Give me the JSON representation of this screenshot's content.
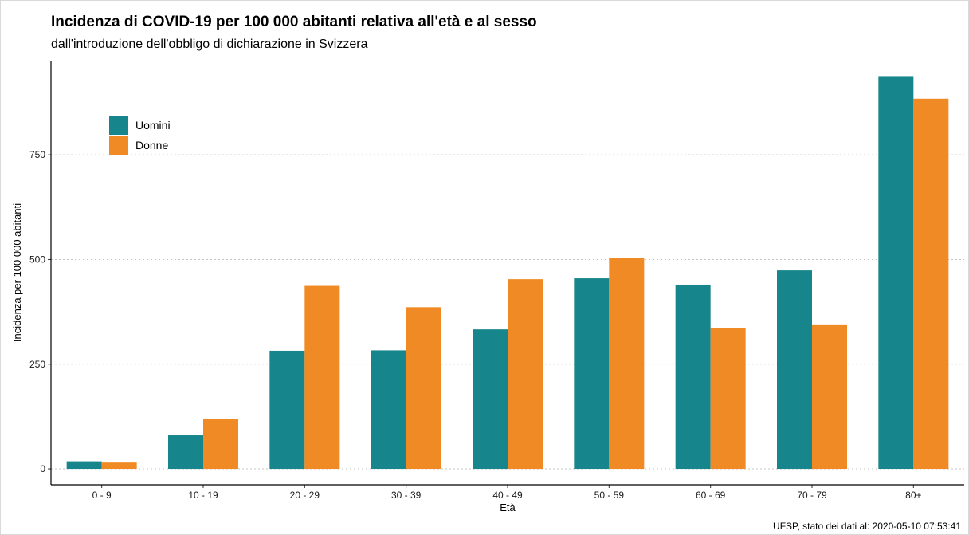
{
  "chart_data": {
    "type": "bar",
    "title": "Incidenza di COVID-19 per 100 000 abitanti relativa all'età e al sesso",
    "subtitle": "dall'introduzione dell'obbligo di dichiarazione in Svizzera",
    "xlabel": "Età",
    "ylabel": "Incidenza per 100 000 abitanti",
    "caption": "UFSP, stato dei dati al: 2020-05-10 07:53:41",
    "categories": [
      "0 - 9",
      "10 - 19",
      "20 - 29",
      "30 - 39",
      "40 - 49",
      "50 - 59",
      "60 - 69",
      "70 - 79",
      "80+"
    ],
    "series": [
      {
        "name": "Uomini",
        "color": "#17868c",
        "values": [
          18,
          80,
          282,
          283,
          333,
          455,
          440,
          474,
          938
        ]
      },
      {
        "name": "Donne",
        "color": "#f08a24",
        "values": [
          15,
          120,
          437,
          386,
          453,
          503,
          336,
          345,
          884
        ]
      }
    ],
    "ylim": [
      -38,
      975
    ],
    "yticks": [
      0,
      250,
      500,
      750
    ],
    "grid": "horizontal dotted",
    "legend_position": "top-left"
  }
}
